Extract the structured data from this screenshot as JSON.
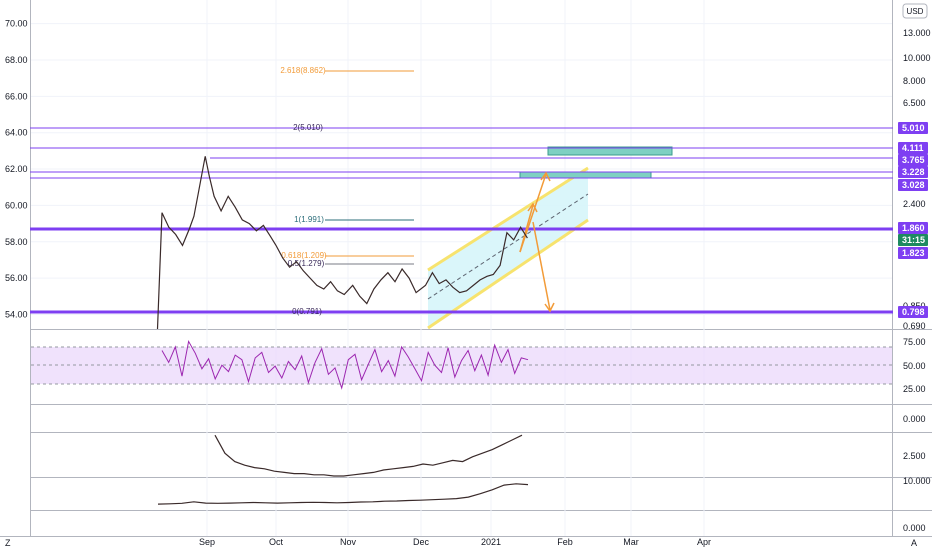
{
  "colors": {
    "purple": "#7e3ff2",
    "price_up": "#26a69a",
    "price_down": "#ef5350",
    "candle": "#3a2a2a",
    "rsi": "#9c27b0",
    "rsi_band": "#e9d5fb",
    "channel": "#f7e36e",
    "channel_fill": "#d6f5f9",
    "zone": "#7ed0c2",
    "arrow": "#f29b38",
    "fib_orange": "#f29b38",
    "fib_teal": "#2b6d7a",
    "price_tag_green": "#1e8a60"
  },
  "header": {
    "currency_badge": "USD"
  },
  "chart_data": [
    {
      "type": "line",
      "title": "",
      "xlabel": "",
      "ylabel": "",
      "x_ticks": [
        "Sep",
        "Oct",
        "Nov",
        "Dec",
        "2021",
        "Feb",
        "Mar",
        "Apr"
      ],
      "left_axis": {
        "ticks": [
          "70.00",
          "68.00",
          "66.00",
          "64.00",
          "62.00",
          "60.00",
          "58.00",
          "56.00",
          "54.00"
        ],
        "ylim": [
          53.2,
          71.3
        ]
      },
      "right_axis": {
        "log": true,
        "ticks": [
          "13.000",
          "10.000",
          "8.000",
          "6.500",
          "2.400",
          "0.850",
          "0.690"
        ]
      },
      "price_tags": [
        {
          "label": "5.010",
          "value": 5.01,
          "kind": "purple"
        },
        {
          "label": "4.111",
          "value": 4.111,
          "kind": "purple"
        },
        {
          "label": "3.765",
          "value": 3.765,
          "kind": "purple"
        },
        {
          "label": "3.228",
          "value": 3.228,
          "kind": "purple"
        },
        {
          "label": "3.028",
          "value": 3.028,
          "kind": "purple"
        },
        {
          "label": "1.860",
          "value": 1.86,
          "kind": "purple"
        },
        {
          "label": "31:15",
          "value": 1.84,
          "kind": "green"
        },
        {
          "label": "1.823",
          "value": 1.823,
          "kind": "purple"
        },
        {
          "label": "0.798",
          "value": 0.798,
          "kind": "purple"
        }
      ],
      "fib_levels": [
        {
          "label": "2.618(8.862)",
          "color": "orange"
        },
        {
          "label": "2(5.010)",
          "color": "dark"
        },
        {
          "label": "1(1.991)",
          "color": "teal"
        },
        {
          "label": "0.618(1.209)",
          "color": "orange"
        },
        {
          "label": "0.5(1.279)",
          "color": "dark"
        },
        {
          "label": "0(0.791)",
          "color": "dark"
        }
      ],
      "series": [
        {
          "points": [
            [
              "Aug 10",
              53.2
            ],
            [
              "Aug 12",
              59.6
            ],
            [
              "Aug 15",
              58.8
            ],
            [
              "Aug 18",
              58.4
            ],
            [
              "Aug 21",
              57.8
            ],
            [
              "Aug 24",
              58.7
            ],
            [
              "Aug 26",
              59.4
            ],
            [
              "Aug 28",
              60.7
            ],
            [
              "Aug 31",
              62.7
            ],
            [
              "Sep 2",
              61.6
            ],
            [
              "Sep 4",
              60.5
            ],
            [
              "Sep 7",
              59.7
            ],
            [
              "Sep 10",
              60.5
            ],
            [
              "Sep 13",
              59.9
            ],
            [
              "Sep 16",
              59.2
            ],
            [
              "Sep 19",
              59.0
            ],
            [
              "Sep 22",
              58.6
            ],
            [
              "Sep 25",
              58.9
            ],
            [
              "Sep 28",
              58.3
            ],
            [
              "Oct 1",
              57.8
            ],
            [
              "Oct 4",
              57.1
            ],
            [
              "Oct 7",
              56.6
            ],
            [
              "Oct 10",
              56.9
            ],
            [
              "Oct 13",
              56.4
            ],
            [
              "Oct 16",
              56.0
            ],
            [
              "Oct 19",
              55.6
            ],
            [
              "Oct 22",
              55.4
            ],
            [
              "Oct 25",
              55.8
            ],
            [
              "Oct 28",
              55.3
            ],
            [
              "Oct 31",
              55.1
            ],
            [
              "Nov 3",
              55.6
            ],
            [
              "Nov 6",
              55.0
            ],
            [
              "Nov 9",
              54.6
            ],
            [
              "Nov 12",
              55.4
            ],
            [
              "Nov 15",
              55.9
            ],
            [
              "Nov 18",
              56.3
            ],
            [
              "Nov 21",
              55.8
            ],
            [
              "Nov 24",
              56.5
            ],
            [
              "Nov 27",
              56.0
            ],
            [
              "Nov 30",
              55.2
            ],
            [
              "Dec 3",
              55.6
            ],
            [
              "Dec 6",
              56.3
            ],
            [
              "Dec 9",
              55.7
            ],
            [
              "Dec 12",
              55.9
            ],
            [
              "Dec 15",
              55.5
            ],
            [
              "Dec 18",
              55.2
            ],
            [
              "Dec 21",
              55.3
            ],
            [
              "Dec 24",
              55.6
            ],
            [
              "Dec 27",
              55.9
            ],
            [
              "Dec 30",
              56.1
            ],
            [
              "Jan 2",
              56.2
            ],
            [
              "Jan 5",
              56.7
            ],
            [
              "Jan 8",
              58.5
            ],
            [
              "Jan 11",
              58.1
            ],
            [
              "Jan 14",
              58.8
            ],
            [
              "Jan 17",
              58.2
            ]
          ]
        }
      ],
      "rsi": {
        "ticks": [
          "75.00",
          "50.00",
          "25.00"
        ],
        "ylim": [
          15,
          85
        ],
        "band": [
          30,
          70
        ],
        "values": [
          68,
          55,
          72,
          40,
          78,
          65,
          48,
          59,
          37,
          52,
          45,
          63,
          58,
          34,
          60,
          66,
          44,
          51,
          38,
          56,
          47,
          62,
          33,
          55,
          70,
          42,
          49,
          27,
          58,
          64,
          36,
          53,
          69,
          45,
          57,
          40,
          72,
          61,
          48,
          35,
          66,
          52,
          44,
          71,
          39,
          57,
          68,
          46,
          63,
          41,
          74,
          55,
          69,
          43,
          60,
          58
        ]
      },
      "indicator_2": {
        "ticks": [
          "0.000",
          "2.500"
        ],
        "values": [
          0.1,
          1.6,
          2.3,
          2.6,
          2.8,
          2.9,
          3.1,
          3.2,
          3.3,
          3.3,
          3.4,
          3.4,
          3.5,
          3.5,
          3.4,
          3.3,
          3.2,
          3.0,
          2.9,
          2.8,
          2.7,
          2.5,
          2.6,
          2.4,
          2.2,
          2.3,
          1.9,
          1.6,
          1.3,
          0.9,
          0.5,
          0.1
        ]
      },
      "indicator_3": {
        "ticks": [
          "10.000",
          "0.000"
        ],
        "values": [
          1.5,
          1.6,
          1.8,
          2.4,
          1.9,
          1.8,
          1.9,
          2.0,
          2.1,
          2.0,
          1.9,
          2.0,
          2.1,
          2.2,
          2.1,
          2.0,
          2.1,
          2.3,
          2.4,
          2.6,
          2.7,
          2.9,
          3.0,
          3.2,
          3.4,
          3.6,
          4.2,
          5.5,
          7.0,
          8.8,
          9.3,
          9.0
        ]
      },
      "footer": {
        "left_badge": "Z",
        "right_badge": "A"
      }
    }
  ]
}
